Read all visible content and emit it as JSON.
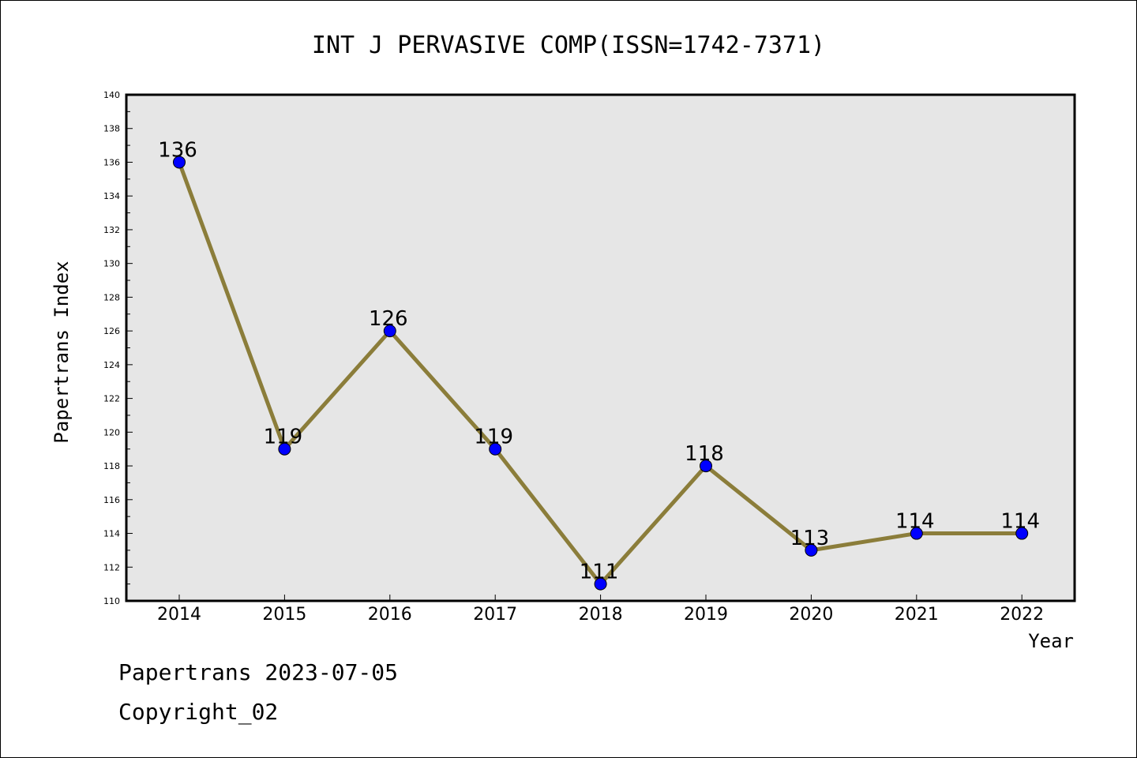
{
  "chart_data": {
    "type": "line",
    "title": "INT J PERVASIVE COMP(ISSN=1742-7371)",
    "xlabel": "Year",
    "ylabel": "Papertrans Index",
    "categories": [
      "2014",
      "2015",
      "2016",
      "2017",
      "2018",
      "2019",
      "2020",
      "2021",
      "2022"
    ],
    "series": [
      {
        "values": [
          136,
          119,
          126,
          119,
          111,
          118,
          113,
          114,
          114
        ]
      }
    ],
    "data_labels": [
      "136",
      "119",
      "126",
      "119",
      "111",
      "118",
      "113",
      "114",
      "114"
    ],
    "yticks": [
      "110",
      "112",
      "114",
      "116",
      "118",
      "120",
      "122",
      "124",
      "126",
      "128",
      "130",
      "132",
      "134",
      "136",
      "138",
      "140"
    ],
    "ylim": [
      110,
      140
    ],
    "grid": false,
    "legend": "none",
    "colors": {
      "line": "#8b7d3a",
      "marker": "#0000ff",
      "plot_background": "#e6e6e6"
    }
  },
  "footer": {
    "line1": "Papertrans 2023-07-05",
    "line2": "Copyright_02"
  }
}
